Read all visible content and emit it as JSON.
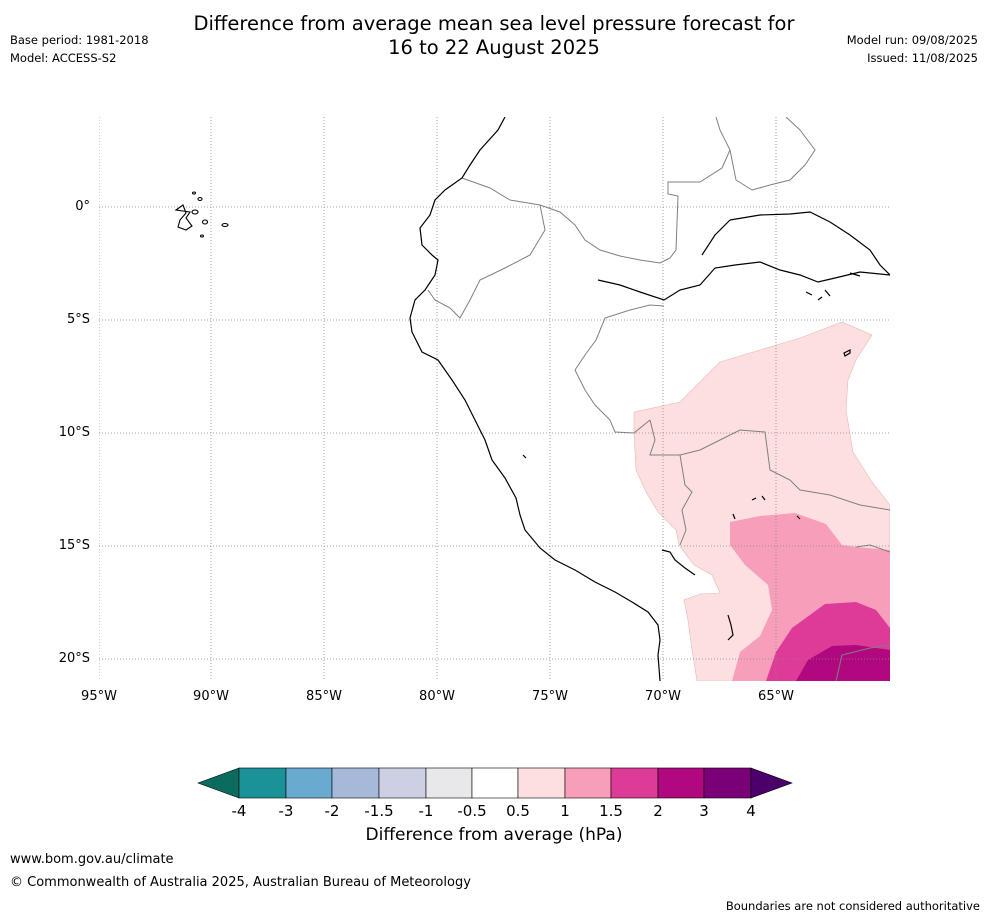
{
  "title": {
    "line1": "Difference from average mean sea level pressure forecast for",
    "line2": "16 to 22 August 2025"
  },
  "meta_left": {
    "base_period": "Base period: 1981-2018",
    "model": "Model: ACCESS-S2"
  },
  "meta_right": {
    "model_run": "Model run: 09/08/2025",
    "issued": "Issued: 11/08/2025"
  },
  "map": {
    "lat_labels": [
      "0°",
      "5°S",
      "10°S",
      "15°S",
      "20°S"
    ],
    "lon_labels": [
      "95°W",
      "90°W",
      "85°W",
      "80°W",
      "75°W",
      "70°W",
      "65°W"
    ],
    "grid": true
  },
  "colorbar": {
    "title": "Difference from average (hPa)",
    "ticks": [
      "-4",
      "-3",
      "-2",
      "-1.5",
      "-1",
      "-0.5",
      "0.5",
      "1",
      "1.5",
      "2",
      "3",
      "4"
    ],
    "colors": {
      "below_-4": "#0b6b5e",
      "-4_-3": "#1a9297",
      "-3_-2": "#6aaad1",
      "-2_-1.5": "#a6b9d9",
      "-1.5_-1": "#cdd0e5",
      "-1_-0.5": "#e8e7ea",
      "-0.5_0.5": "#ffffff",
      "0.5_1": "#fddfe0",
      "1_1.5": "#f79fba",
      "1.5_2": "#de3a98",
      "2_3": "#b2087f",
      "3_4": "#7a0077",
      "above_4": "#4a0068"
    }
  },
  "footer": {
    "url": "www.bom.gov.au/climate",
    "copyright": "© Commonwealth of Australia 2025, Australian Bureau of Meteorology",
    "disclaimer": "Boundaries are not considered authoritative"
  }
}
